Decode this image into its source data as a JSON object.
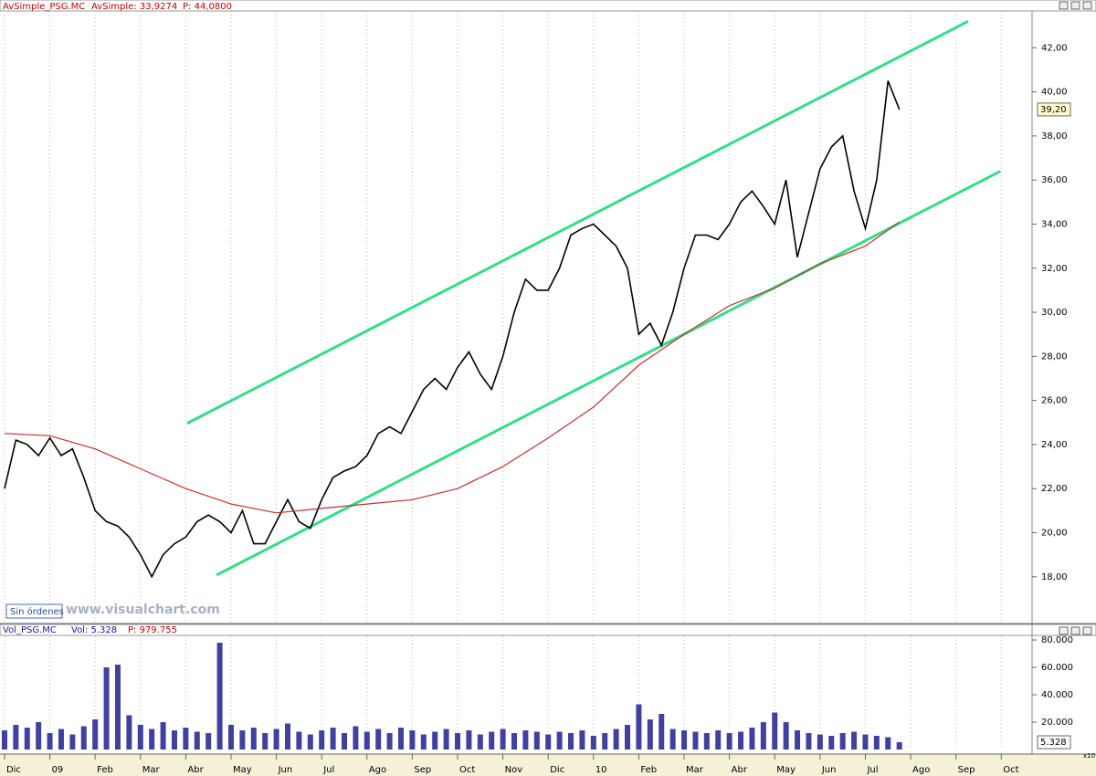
{
  "chart_data": [
    {
      "type": "line",
      "header": [
        "AvSimple_PSG.MC",
        "AvSimple: 33,9274",
        "P: 44,0800"
      ],
      "xlim": [
        -0.1,
        22.68
      ],
      "ylim": [
        15.92,
        43.67
      ],
      "yticks": [
        {
          "value": 18,
          "label": "18,00"
        },
        {
          "value": 20,
          "label": "20,00"
        },
        {
          "value": 22,
          "label": "22,00"
        },
        {
          "value": 24,
          "label": "24,00"
        },
        {
          "value": 26,
          "label": "26,00"
        },
        {
          "value": 28,
          "label": "28,00"
        },
        {
          "value": 30,
          "label": "30,00"
        },
        {
          "value": 32,
          "label": "32,00"
        },
        {
          "value": 34,
          "label": "34,00"
        },
        {
          "value": 36,
          "label": "36,00"
        },
        {
          "value": 38,
          "label": "38,00"
        },
        {
          "value": 40,
          "label": "40,00"
        },
        {
          "value": 42,
          "label": "42,00"
        }
      ],
      "grid": true,
      "series": [
        {
          "color": "#000000",
          "x": [
            0,
            0.25,
            0.5,
            0.75,
            1,
            1.25,
            1.5,
            1.75,
            2,
            2.25,
            2.5,
            2.75,
            3,
            3.25,
            3.5,
            3.75,
            4,
            4.25,
            4.5,
            4.75,
            5,
            5.25,
            5.5,
            5.75,
            6,
            6.25,
            6.5,
            6.75,
            7,
            7.25,
            7.5,
            7.75,
            8,
            8.25,
            8.5,
            8.75,
            9,
            9.25,
            9.5,
            9.75,
            10,
            10.25,
            10.5,
            10.75,
            11,
            11.25,
            11.5,
            11.75,
            12,
            12.25,
            12.5,
            12.75,
            13,
            13.25,
            13.5,
            13.75,
            14,
            14.25,
            14.5,
            14.75,
            15,
            15.25,
            15.5,
            15.75,
            16,
            16.25,
            16.5,
            16.75,
            17,
            17.25,
            17.5,
            17.75,
            18,
            18.25,
            18.5,
            18.75,
            19,
            19.25,
            19.5,
            19.75
          ],
          "values": [
            22,
            24.2,
            24,
            23.5,
            24.3,
            23.5,
            23.8,
            22.5,
            21,
            20.5,
            20.3,
            19.8,
            19,
            18,
            19,
            19.5,
            19.8,
            20.5,
            20.8,
            20.5,
            20,
            21,
            19.5,
            19.5,
            20.5,
            21.5,
            20.5,
            20.2,
            21.5,
            22.5,
            22.8,
            23,
            23.5,
            24.5,
            24.8,
            24.5,
            25.5,
            26.5,
            27,
            26.5,
            27.5,
            28.2,
            27.2,
            26.5,
            28,
            30,
            31.5,
            31,
            31,
            32,
            33.5,
            33.8,
            34,
            33.5,
            33,
            32,
            29,
            29.5,
            28.5,
            30,
            32,
            33.5,
            33.5,
            33.3,
            34,
            35,
            35.5,
            34.8,
            34,
            36,
            32.5,
            34.5,
            36.5,
            37.5,
            38,
            35.5,
            33.8,
            36,
            40.5,
            39.2
          ]
        },
        {
          "color": "#c03030",
          "x": [
            0,
            1,
            2,
            3,
            4,
            5,
            6,
            7,
            8,
            9,
            10,
            11,
            12,
            13,
            14,
            15,
            16,
            17,
            18,
            19,
            19.75
          ],
          "values": [
            24.5,
            24.4,
            23.8,
            22.9,
            22,
            21.3,
            20.9,
            21.1,
            21.3,
            21.5,
            22,
            23,
            24.3,
            25.7,
            27.6,
            29,
            30.3,
            31.1,
            32.2,
            33,
            34.1
          ]
        }
      ],
      "trendlines": [
        {
          "color": "#33dd88",
          "x": [
            4.03,
            21.27
          ],
          "y": [
            24.96,
            43.2
          ]
        },
        {
          "color": "#33dd88",
          "x": [
            4.68,
            21.98
          ],
          "y": [
            18.08,
            36.4
          ]
        }
      ],
      "last": {
        "value": 39.2,
        "label": "39,20"
      },
      "labels": [
        "Sin órdenes",
        "www.visualchart.com"
      ]
    },
    {
      "type": "bar",
      "header": [
        "Vol_PSG.MC",
        "Vol: 5.328",
        "P: 979.755"
      ],
      "color": "#4040a0",
      "xlim": [
        -0.1,
        22.68
      ],
      "ylim": [
        0,
        82700
      ],
      "yticks": [
        {
          "value": 20000,
          "label": "20.000"
        },
        {
          "value": 40000,
          "label": "40.000"
        },
        {
          "value": 60000,
          "label": "60.000"
        },
        {
          "value": 80000,
          "label": "80.000"
        }
      ],
      "xticks": [
        {
          "value": 0,
          "label": "Dic"
        },
        {
          "value": 1,
          "label": "09"
        },
        {
          "value": 2,
          "label": "Feb"
        },
        {
          "value": 3,
          "label": "Mar"
        },
        {
          "value": 4,
          "label": "Abr"
        },
        {
          "value": 5,
          "label": "May"
        },
        {
          "value": 6,
          "label": "Jun"
        },
        {
          "value": 7,
          "label": "Jul"
        },
        {
          "value": 8,
          "label": "Ago"
        },
        {
          "value": 9,
          "label": "Sep"
        },
        {
          "value": 10,
          "label": "Oct"
        },
        {
          "value": 11,
          "label": "Nov"
        },
        {
          "value": 12,
          "label": "Dic"
        },
        {
          "value": 13,
          "label": "10"
        },
        {
          "value": 14,
          "label": "Feb"
        },
        {
          "value": 15,
          "label": "Mar"
        },
        {
          "value": 16,
          "label": "Abr"
        },
        {
          "value": 17,
          "label": "May"
        },
        {
          "value": 18,
          "label": "Jun"
        },
        {
          "value": 19,
          "label": "Jul"
        },
        {
          "value": 20,
          "label": "Ago"
        },
        {
          "value": 21,
          "label": "Sep"
        },
        {
          "value": 22,
          "label": "Oct"
        }
      ],
      "x": [
        0,
        0.25,
        0.5,
        0.75,
        1,
        1.25,
        1.5,
        1.75,
        2,
        2.25,
        2.5,
        2.75,
        3,
        3.25,
        3.5,
        3.75,
        4,
        4.25,
        4.5,
        4.75,
        5,
        5.25,
        5.5,
        5.75,
        6,
        6.25,
        6.5,
        6.75,
        7,
        7.25,
        7.5,
        7.75,
        8,
        8.25,
        8.5,
        8.75,
        9,
        9.25,
        9.5,
        9.75,
        10,
        10.25,
        10.5,
        10.75,
        11,
        11.25,
        11.5,
        11.75,
        12,
        12.25,
        12.5,
        12.75,
        13,
        13.25,
        13.5,
        13.75,
        14,
        14.25,
        14.5,
        14.75,
        15,
        15.25,
        15.5,
        15.75,
        16,
        16.25,
        16.5,
        16.75,
        17,
        17.25,
        17.5,
        17.75,
        18,
        18.25,
        18.5,
        18.75,
        19,
        19.25,
        19.5,
        19.75
      ],
      "values": [
        14000,
        18000,
        16000,
        20000,
        12000,
        15000,
        11000,
        17000,
        22000,
        60000,
        62000,
        25000,
        18000,
        15000,
        20000,
        14000,
        16000,
        13000,
        12000,
        78000,
        18000,
        14000,
        16000,
        12000,
        15000,
        19000,
        13000,
        11000,
        14000,
        16000,
        12000,
        17000,
        13000,
        15000,
        12000,
        16000,
        14000,
        11000,
        13000,
        15000,
        12000,
        14000,
        11000,
        13000,
        15000,
        12000,
        14000,
        13000,
        11000,
        13000,
        12000,
        14000,
        10000,
        12000,
        15000,
        18000,
        33000,
        22000,
        26000,
        15000,
        14000,
        13000,
        12000,
        14000,
        12000,
        13000,
        16000,
        20000,
        27000,
        20000,
        14000,
        12000,
        11000,
        10000,
        12000,
        13000,
        11000,
        10000,
        9000,
        5328
      ],
      "last": {
        "value": 5328,
        "label": "5.328"
      },
      "labels": [
        "x10"
      ]
    }
  ]
}
